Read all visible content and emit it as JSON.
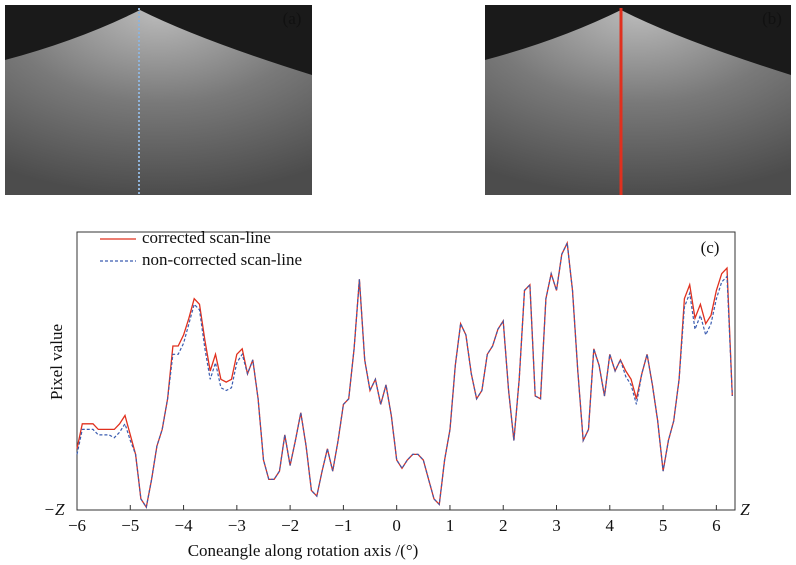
{
  "panels": [
    {
      "label": "(a)"
    },
    {
      "label": "(b)"
    }
  ],
  "chart_data": {
    "type": "line",
    "xlabel": "Coneangle along rotation axis /(°)",
    "ylabel": "Pixel value",
    "annotation": "(c)",
    "y_min_label": "−Z",
    "x_end_label": "Z",
    "legend": "upper left",
    "xlim": [
      -6,
      6.35
    ],
    "ylim": [
      0,
      100
    ],
    "xticks": [
      {
        "value": -6,
        "label": "−6"
      },
      {
        "value": -5,
        "label": "−5"
      },
      {
        "value": -4,
        "label": "−4"
      },
      {
        "value": -3,
        "label": "−3"
      },
      {
        "value": -2,
        "label": "−2"
      },
      {
        "value": -1,
        "label": "−1"
      },
      0,
      1,
      2,
      3,
      4,
      5,
      6
    ],
    "x": [
      -6.0,
      -5.9,
      -5.8,
      -5.7,
      -5.6,
      -5.5,
      -5.4,
      -5.3,
      -5.2,
      -5.1,
      -5.0,
      -4.9,
      -4.8,
      -4.7,
      -4.6,
      -4.5,
      -4.4,
      -4.3,
      -4.2,
      -4.1,
      -4.0,
      -3.9,
      -3.8,
      -3.7,
      -3.6,
      -3.5,
      -3.4,
      -3.3,
      -3.2,
      -3.1,
      -3.0,
      -2.9,
      -2.8,
      -2.7,
      -2.6,
      -2.5,
      -2.4,
      -2.3,
      -2.2,
      -2.1,
      -2.0,
      -1.9,
      -1.8,
      -1.7,
      -1.6,
      -1.5,
      -1.4,
      -1.3,
      -1.2,
      -1.1,
      -1.0,
      -0.9,
      -0.8,
      -0.7,
      -0.6,
      -0.5,
      -0.4,
      -0.3,
      -0.2,
      -0.1,
      0.0,
      0.1,
      0.2,
      0.3,
      0.4,
      0.5,
      0.6,
      0.7,
      0.8,
      0.9,
      1.0,
      1.1,
      1.2,
      1.3,
      1.4,
      1.5,
      1.6,
      1.7,
      1.8,
      1.9,
      2.0,
      2.1,
      2.2,
      2.3,
      2.4,
      2.5,
      2.6,
      2.7,
      2.8,
      2.9,
      3.0,
      3.1,
      3.2,
      3.3,
      3.4,
      3.5,
      3.6,
      3.7,
      3.8,
      3.9,
      4.0,
      4.1,
      4.2,
      4.3,
      4.4,
      4.5,
      4.6,
      4.7,
      4.8,
      4.9,
      5.0,
      5.1,
      5.2,
      5.3,
      5.4,
      5.5,
      5.6,
      5.7,
      5.8,
      5.9,
      6.0,
      6.1,
      6.2,
      6.3
    ],
    "series": [
      {
        "name": "corrected scan-line",
        "color": "#e0301e",
        "dashed": false,
        "values": [
          22,
          31,
          31,
          31,
          29,
          29,
          29,
          29,
          31,
          34,
          27,
          20,
          4,
          1,
          11,
          23,
          29,
          40,
          59,
          59,
          63,
          69,
          76,
          74,
          61,
          50,
          56,
          47,
          46,
          47,
          56,
          58,
          49,
          54,
          40,
          18,
          11,
          11,
          14,
          27,
          16,
          25,
          35,
          23,
          7,
          5,
          14,
          22,
          14,
          25,
          38,
          40,
          58,
          83,
          54,
          43,
          47,
          38,
          45,
          34,
          18,
          15,
          18,
          20,
          20,
          18,
          11,
          4,
          2,
          18,
          29,
          52,
          67,
          63,
          49,
          40,
          43,
          56,
          59,
          65,
          68,
          43,
          25,
          47,
          79,
          81,
          41,
          40,
          76,
          85,
          79,
          92,
          96,
          79,
          50,
          25,
          29,
          58,
          52,
          41,
          56,
          50,
          54,
          50,
          47,
          40,
          49,
          56,
          45,
          32,
          14,
          25,
          32,
          47,
          76,
          81,
          69,
          74,
          67,
          70,
          79,
          85,
          87,
          41
        ]
      },
      {
        "name": "non-corrected scan-line",
        "color": "#3a5cb0",
        "dashed": true,
        "values": [
          20,
          29,
          29,
          29,
          27,
          27,
          27,
          26,
          28,
          31,
          25,
          20,
          4,
          1,
          11,
          23,
          29,
          40,
          56,
          56,
          60,
          67,
          74,
          72,
          58,
          47,
          53,
          44,
          43,
          44,
          53,
          56,
          49,
          54,
          40,
          18,
          11,
          11,
          14,
          27,
          16,
          25,
          35,
          23,
          7,
          5,
          14,
          22,
          14,
          25,
          38,
          40,
          58,
          83,
          54,
          43,
          47,
          38,
          45,
          34,
          18,
          15,
          18,
          20,
          20,
          18,
          11,
          4,
          2,
          18,
          29,
          52,
          67,
          63,
          49,
          40,
          43,
          56,
          59,
          65,
          68,
          43,
          25,
          47,
          79,
          81,
          41,
          40,
          76,
          85,
          79,
          92,
          96,
          79,
          50,
          25,
          29,
          58,
          52,
          41,
          56,
          50,
          54,
          48,
          45,
          38,
          49,
          56,
          45,
          32,
          14,
          25,
          32,
          47,
          73,
          78,
          65,
          70,
          63,
          67,
          76,
          82,
          84,
          41
        ]
      }
    ]
  }
}
